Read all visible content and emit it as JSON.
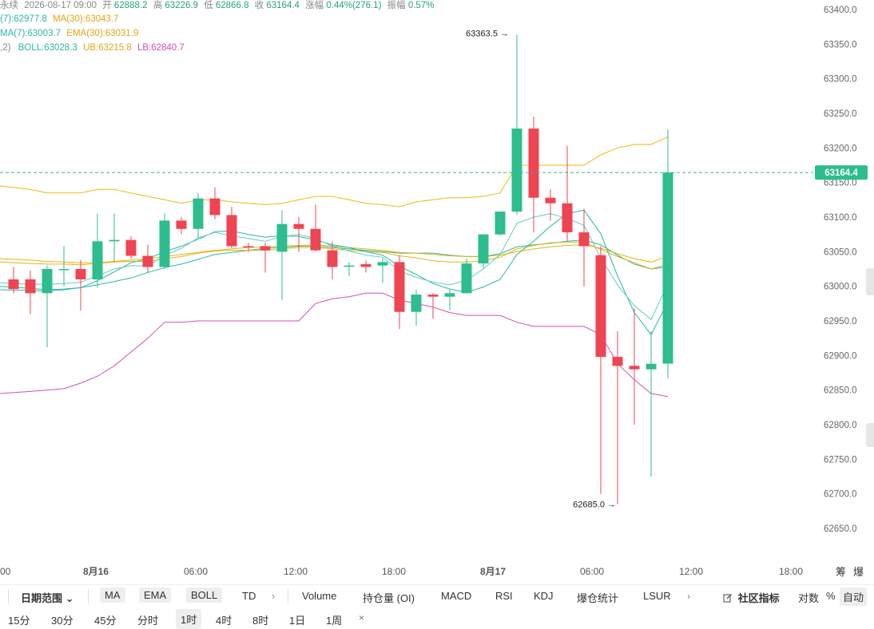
{
  "header": {
    "line1": {
      "prefix": "永续",
      "datetime": "2026-08-17 09:00",
      "open_label": "开",
      "open": "62888.2",
      "high_label": "高",
      "high": "63226.9",
      "low_label": "低",
      "low": "62866.8",
      "close_label": "收",
      "close": "63164.4",
      "change_label": "涨幅",
      "change": "0.44%(276.1)",
      "amp_label": "振幅",
      "amp": "0.57%"
    },
    "line2": {
      "ma7": "(7):62977.8",
      "ma30": "MA(30):63043.7"
    },
    "line3": {
      "ema7": "MA(7):63003.7",
      "ema30": "EMA(30):63031.9"
    },
    "line4": {
      "boll_param": ",2)",
      "boll": "BOLL:63028.3",
      "ub": "UB:63215.8",
      "lb": "LB:62840.7"
    }
  },
  "colors": {
    "up": "#2ebd8e",
    "down": "#ef4452",
    "ma7": "#2bb7a5",
    "ma30": "#e8b40f",
    "boll_mid": "#2bb7a5",
    "ub": "#f0b90b",
    "lb": "#d14fb3",
    "current": "#2ebd8e"
  },
  "chart_data": {
    "type": "candlestick",
    "ylim": [
      62625,
      63425
    ],
    "y_ticks": [
      "63400.0",
      "63350.0",
      "63300.0",
      "63250.0",
      "63200.0",
      "63150.0",
      "63100.0",
      "63050.0",
      "63000.0",
      "62950.0",
      "62900.0",
      "62850.0",
      "62800.0",
      "62750.0",
      "62700.0",
      "62650.0"
    ],
    "x_labels": [
      "00",
      "8月16",
      "06:00",
      "12:00",
      "18:00",
      "8月17",
      "06:00",
      "12:00",
      "18:00"
    ],
    "high_marker": "63363.5",
    "low_marker": "62685.0",
    "current_price": "63164.4",
    "candles": [
      {
        "o": 63010,
        "h": 63028,
        "l": 62990,
        "c": 62996
      },
      {
        "o": 63010,
        "h": 63023,
        "l": 62960,
        "c": 62990
      },
      {
        "o": 62990,
        "h": 63030,
        "l": 62912,
        "c": 63025
      },
      {
        "o": 63025,
        "h": 63058,
        "l": 63000,
        "c": 63025
      },
      {
        "o": 63025,
        "h": 63038,
        "l": 62965,
        "c": 63010
      },
      {
        "o": 63010,
        "h": 63105,
        "l": 62998,
        "c": 63065
      },
      {
        "o": 63065,
        "h": 63105,
        "l": 63035,
        "c": 63067
      },
      {
        "o": 63067,
        "h": 63072,
        "l": 63040,
        "c": 63044
      },
      {
        "o": 63044,
        "h": 63060,
        "l": 63020,
        "c": 63028
      },
      {
        "o": 63028,
        "h": 63105,
        "l": 63025,
        "c": 63095
      },
      {
        "o": 63095,
        "h": 63100,
        "l": 63075,
        "c": 63083
      },
      {
        "o": 63083,
        "h": 63135,
        "l": 63070,
        "c": 63127
      },
      {
        "o": 63127,
        "h": 63143,
        "l": 63097,
        "c": 63103
      },
      {
        "o": 63103,
        "h": 63115,
        "l": 63055,
        "c": 63058
      },
      {
        "o": 63058,
        "h": 63063,
        "l": 63050,
        "c": 63057
      },
      {
        "o": 63058,
        "h": 63063,
        "l": 63020,
        "c": 63052
      },
      {
        "o": 63050,
        "h": 63110,
        "l": 62980,
        "c": 63090
      },
      {
        "o": 63090,
        "h": 63100,
        "l": 63050,
        "c": 63083
      },
      {
        "o": 63083,
        "h": 63118,
        "l": 63050,
        "c": 63052
      },
      {
        "o": 63052,
        "h": 63065,
        "l": 63010,
        "c": 63028
      },
      {
        "o": 63030,
        "h": 63035,
        "l": 63015,
        "c": 63030
      },
      {
        "o": 63032,
        "h": 63037,
        "l": 63020,
        "c": 63028
      },
      {
        "o": 63030,
        "h": 63040,
        "l": 63005,
        "c": 63035
      },
      {
        "o": 63035,
        "h": 63045,
        "l": 62938,
        "c": 62963
      },
      {
        "o": 62963,
        "h": 62995,
        "l": 62943,
        "c": 62988
      },
      {
        "o": 62988,
        "h": 62990,
        "l": 62953,
        "c": 62985
      },
      {
        "o": 62985,
        "h": 62995,
        "l": 62965,
        "c": 62990
      },
      {
        "o": 62990,
        "h": 63040,
        "l": 62990,
        "c": 63033
      },
      {
        "o": 63033,
        "h": 63075,
        "l": 63026,
        "c": 63075
      },
      {
        "o": 63075,
        "h": 63108,
        "l": 63073,
        "c": 63108
      },
      {
        "o": 63108,
        "h": 63363.5,
        "l": 63103,
        "c": 63228
      },
      {
        "o": 63228,
        "h": 63245,
        "l": 63078,
        "c": 63128
      },
      {
        "o": 63128,
        "h": 63140,
        "l": 63095,
        "c": 63120
      },
      {
        "o": 63120,
        "h": 63203,
        "l": 63065,
        "c": 63078
      },
      {
        "o": 63078,
        "h": 63112,
        "l": 63000,
        "c": 63058
      },
      {
        "o": 63045,
        "h": 63058,
        "l": 62700,
        "c": 62898
      },
      {
        "o": 62898,
        "h": 62935,
        "l": 62685,
        "c": 62885
      },
      {
        "o": 62885,
        "h": 62968,
        "l": 62800,
        "c": 62880
      },
      {
        "o": 62880,
        "h": 62935,
        "l": 62725,
        "c": 62888
      },
      {
        "o": 62888.2,
        "h": 63226.9,
        "l": 62866.8,
        "c": 63164.4
      }
    ],
    "ub": [
      63145,
      63140,
      63135,
      63135,
      63135,
      63140,
      63140,
      63135,
      63130,
      63125,
      63120,
      63125,
      63125,
      63122,
      63120,
      63118,
      63120,
      63125,
      63130,
      63130,
      63125,
      63120,
      63118,
      63115,
      63122,
      63125,
      63128,
      63128,
      63130,
      63135,
      63175,
      63175,
      63175,
      63175,
      63175,
      63190,
      63200,
      63205,
      63205,
      63215.8
    ],
    "lb": [
      62845,
      62848,
      62850,
      62852,
      62860,
      62870,
      62885,
      62905,
      62925,
      62948,
      62948,
      62950,
      62950,
      62950,
      62950,
      62950,
      62950,
      62950,
      62975,
      62982,
      62985,
      62990,
      62990,
      62980,
      62975,
      62970,
      62962,
      62958,
      62958,
      62958,
      62948,
      62942,
      62942,
      62942,
      62942,
      62930,
      62888,
      62865,
      62845,
      62840.7
    ],
    "boll_mid": [
      62995,
      62994,
      62993,
      62995,
      62998,
      63002,
      63007,
      63012,
      63020,
      63027,
      63032,
      63039,
      63046,
      63049,
      63052,
      63055,
      63056,
      63058,
      63058,
      63056,
      63054,
      63052,
      63050,
      63048,
      63048,
      63048,
      63045,
      63043,
      63043,
      63047,
      63057,
      63060,
      63062,
      63065,
      63067,
      63060,
      63045,
      63032,
      63025,
      63028.3
    ],
    "ma7": [
      63000,
      62997,
      62995,
      62996,
      62998,
      63008,
      63021,
      63034,
      63040,
      63050,
      63058,
      63068,
      63079,
      63080,
      63075,
      63071,
      63073,
      63072,
      63067,
      63060,
      63056,
      63050,
      63045,
      63029,
      63017,
      63004,
      62996,
      62991,
      62999,
      63010,
      63046,
      63065,
      63087,
      63105,
      63110,
      63076,
      63015,
      62962,
      62930,
      62977.8
    ],
    "ema7": [
      63005,
      63003,
      63003,
      63004,
      63006,
      63015,
      63025,
      63030,
      63029,
      63045,
      63055,
      63070,
      63078,
      63073,
      63069,
      63065,
      63072,
      63075,
      63069,
      63058,
      63051,
      63045,
      63042,
      63022,
      63013,
      63006,
      63002,
      63009,
      63025,
      63046,
      63091,
      63100,
      63105,
      63098,
      63088,
      63041,
      63002,
      62972,
      62952,
      63003.7
    ],
    "ma30": [
      63040,
      63038,
      63036,
      63035,
      63034,
      63034,
      63036,
      63038,
      63040,
      63043,
      63046,
      63049,
      63052,
      63054,
      63056,
      63057,
      63058,
      63059,
      63060,
      63058,
      63056,
      63054,
      63052,
      63049,
      63048,
      63046,
      63044,
      63043,
      63043,
      63045,
      63050,
      63054,
      63057,
      63059,
      63060,
      63055,
      63047,
      63040,
      63035,
      63043.7
    ],
    "ema30": [
      63035,
      63033,
      63032,
      63032,
      63031,
      63033,
      63035,
      63036,
      63036,
      63040,
      63043,
      63048,
      63051,
      63052,
      63052,
      63052,
      63054,
      63056,
      63056,
      63054,
      63052,
      63050,
      63049,
      63044,
      63041,
      63037,
      63035,
      63035,
      63037,
      63042,
      63054,
      63059,
      63063,
      63064,
      63064,
      63053,
      63043,
      63034,
      63025,
      63031.9
    ]
  },
  "toolbar": {
    "date_range": "日期范围",
    "chevron": "⌄",
    "ma": "MA",
    "ema": "EMA",
    "boll": "BOLL",
    "td": "TD",
    "more1": "›",
    "volume": "Volume",
    "oi": "持仓量 (OI)",
    "macd": "MACD",
    "rsi": "RSI",
    "kdj": "KDJ",
    "liq": "爆仓统计",
    "lsur": "LSUR",
    "more2": "›",
    "community": "社区指标",
    "log": "对数",
    "pct": "%",
    "auto": "自动"
  },
  "timeframes": [
    "15分",
    "30分",
    "45分",
    "分时",
    "1时",
    "4时",
    "8时",
    "1日",
    "1周"
  ],
  "active_timeframe": "1时",
  "close_x": "×",
  "side": {
    "chip1": "筹",
    "chip2": "爆"
  }
}
